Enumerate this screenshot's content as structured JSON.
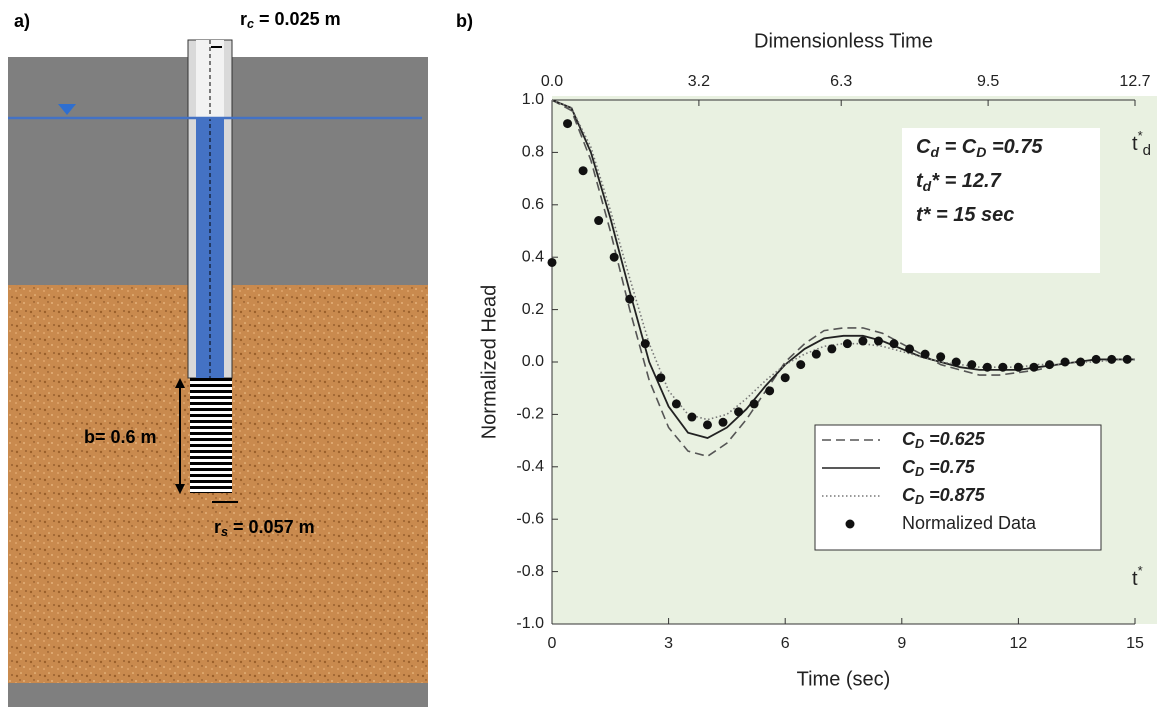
{
  "panel_labels": [
    "a)",
    "b)"
  ],
  "diagram": {
    "casing_radius": "rc = 0.025 m",
    "screen_length": "b= 0.6 m",
    "screen_radius": "rs = 0.057 m"
  },
  "chart_data": {
    "type": "line",
    "title": "Dimensionless Time",
    "x_label": "Time (sec)",
    "y_label": "Normalized Head",
    "xlim": [
      0,
      15
    ],
    "xticks": [
      0,
      3,
      6,
      9,
      12,
      15
    ],
    "x2lim": [
      0,
      12.7
    ],
    "x2ticks": [
      {
        "value": 0,
        "label": "0.0"
      },
      3.2,
      6.3,
      9.5,
      12.7
    ],
    "ylim": [
      -1,
      1
    ],
    "yticks": [
      {
        "value": 1,
        "label": "1.0"
      },
      0.8,
      0.6,
      0.4,
      0.2,
      {
        "value": 0,
        "label": "0.0"
      },
      -0.2,
      -0.4,
      -0.6,
      -0.8,
      {
        "value": -1,
        "label": "-1.0"
      }
    ],
    "annotations": [
      "Cd = CD =0.75",
      "td* = 12.7",
      "t* = 15 sec"
    ],
    "right_axis_labels": [
      "t*d",
      "t*"
    ],
    "background": "#e9f1e1",
    "series": [
      {
        "name": "CD =0.625",
        "style": "dashed",
        "color": "#555555",
        "x": [
          0,
          0.5,
          1,
          1.5,
          2,
          2.5,
          3,
          3.5,
          4,
          4.5,
          5,
          5.5,
          6,
          6.5,
          7,
          7.5,
          8,
          8.5,
          9,
          9.5,
          10,
          10.5,
          11,
          11.5,
          12,
          12.5,
          13,
          13.5,
          14,
          14.5,
          15
        ],
        "values": [
          1.0,
          0.96,
          0.77,
          0.5,
          0.2,
          -0.07,
          -0.25,
          -0.34,
          -0.36,
          -0.31,
          -0.22,
          -0.11,
          0.0,
          0.07,
          0.12,
          0.13,
          0.13,
          0.11,
          0.07,
          0.03,
          -0.01,
          -0.03,
          -0.05,
          -0.05,
          -0.04,
          -0.03,
          -0.01,
          0.0,
          0.01,
          0.01,
          0.01
        ]
      },
      {
        "name": "CD =0.75",
        "style": "solid",
        "color": "#222222",
        "x": [
          0,
          0.5,
          1,
          1.5,
          2,
          2.5,
          3,
          3.5,
          4,
          4.5,
          5,
          5.5,
          6,
          6.5,
          7,
          7.5,
          8,
          8.5,
          9,
          9.5,
          10,
          10.5,
          11,
          11.5,
          12,
          12.5,
          13,
          13.5,
          14,
          14.5,
          15
        ],
        "values": [
          1.0,
          0.97,
          0.8,
          0.55,
          0.27,
          0.0,
          -0.17,
          -0.27,
          -0.29,
          -0.25,
          -0.18,
          -0.09,
          -0.01,
          0.05,
          0.09,
          0.1,
          0.1,
          0.08,
          0.05,
          0.02,
          0.0,
          -0.02,
          -0.03,
          -0.03,
          -0.03,
          -0.02,
          -0.01,
          0.0,
          0.01,
          0.01,
          0.01
        ]
      },
      {
        "name": "CD =0.875",
        "style": "dotted",
        "color": "#777777",
        "x": [
          0,
          0.5,
          1,
          1.5,
          2,
          2.5,
          3,
          3.5,
          4,
          4.5,
          5,
          5.5,
          6,
          6.5,
          7,
          7.5,
          8,
          8.5,
          9,
          9.5,
          10,
          10.5,
          11,
          11.5,
          12,
          12.5,
          13,
          13.5,
          14,
          14.5,
          15
        ],
        "values": [
          1.0,
          0.97,
          0.82,
          0.58,
          0.32,
          0.07,
          -0.11,
          -0.2,
          -0.22,
          -0.2,
          -0.14,
          -0.07,
          -0.01,
          0.03,
          0.06,
          0.07,
          0.07,
          0.06,
          0.04,
          0.02,
          0.0,
          -0.01,
          -0.02,
          -0.02,
          -0.02,
          -0.01,
          -0.01,
          0.0,
          0.0,
          0.01,
          0.01
        ]
      },
      {
        "name": "Normalized Data",
        "style": "points",
        "color": "#111111",
        "x": [
          0,
          0.4,
          0.8,
          1.2,
          1.6,
          2.0,
          2.4,
          2.8,
          3.2,
          3.6,
          4.0,
          4.4,
          4.8,
          5.2,
          5.6,
          6.0,
          6.4,
          6.8,
          7.2,
          7.6,
          8.0,
          8.4,
          8.8,
          9.2,
          9.6,
          10.0,
          10.4,
          10.8,
          11.2,
          11.6,
          12.0,
          12.4,
          12.8,
          13.2,
          13.6,
          14.0,
          14.4,
          14.8
        ],
        "values": [
          0.38,
          0.91,
          0.73,
          0.54,
          0.4,
          0.24,
          0.07,
          -0.06,
          -0.16,
          -0.21,
          -0.24,
          -0.23,
          -0.19,
          -0.16,
          -0.11,
          -0.06,
          -0.01,
          0.03,
          0.05,
          0.07,
          0.08,
          0.08,
          0.07,
          0.05,
          0.03,
          0.02,
          0.0,
          -0.01,
          -0.02,
          -0.02,
          -0.02,
          -0.02,
          -0.01,
          0.0,
          0.0,
          0.01,
          0.01,
          0.01
        ]
      }
    ]
  }
}
